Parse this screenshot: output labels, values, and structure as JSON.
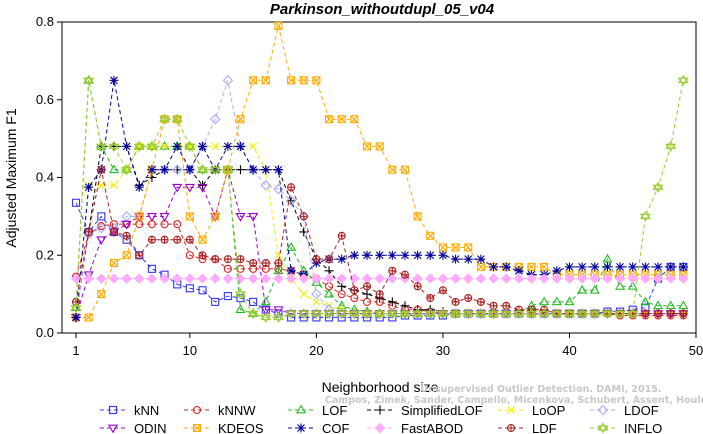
{
  "chart_data": {
    "type": "line",
    "title": "Parkinson_withoutdupl_05_v04",
    "xlabel": "Neighborhood size",
    "ylabel": "Adjusted Maximum F1",
    "xlim": [
      0,
      50
    ],
    "ylim": [
      0,
      0.8
    ],
    "xticks": [
      "1",
      "10",
      "20",
      "30",
      "40",
      "50"
    ],
    "yticks": [
      "0.0",
      "0.2",
      "0.4",
      "0.6",
      "0.8"
    ],
    "grid": false,
    "legend_position": "bottom",
    "watermark": [
      "Unsupervised Outlier Detection. DAMI, 2015.",
      "Campos, Zimek, Sander, Campello, Micenkova, Schubert, Assent, Houle"
    ],
    "series": [
      {
        "name": "kNN",
        "color": "#3333ff",
        "marker": "square",
        "x": [
          1,
          2,
          3,
          4,
          5,
          6,
          7,
          8,
          9,
          10,
          11,
          12,
          13,
          14,
          15,
          16,
          17,
          18,
          19,
          20,
          21,
          22,
          23,
          24,
          25,
          26,
          27,
          28,
          29,
          30,
          31,
          32,
          33,
          34,
          35,
          36,
          37,
          38,
          39,
          40,
          41,
          42,
          43,
          44,
          45,
          46,
          47,
          48,
          49
        ],
        "y": [
          0.335,
          0.26,
          0.3,
          0.26,
          0.24,
          0.2,
          0.165,
          0.15,
          0.125,
          0.115,
          0.11,
          0.08,
          0.095,
          0.09,
          0.08,
          0.06,
          0.05,
          0.04,
          0.04,
          0.04,
          0.04,
          0.04,
          0.04,
          0.04,
          0.04,
          0.04,
          0.045,
          0.045,
          0.045,
          0.045,
          0.05,
          0.05,
          0.05,
          0.05,
          0.05,
          0.05,
          0.05,
          0.05,
          0.05,
          0.05,
          0.05,
          0.05,
          0.055,
          0.055,
          0.06,
          0.065,
          0.14,
          0.17,
          0.17
        ]
      },
      {
        "name": "kNNW",
        "color": "#dd2222",
        "marker": "circle",
        "x": [
          1,
          2,
          3,
          4,
          5,
          6,
          7,
          8,
          9,
          10,
          11,
          12,
          13,
          14,
          15,
          16,
          17,
          18,
          19,
          20,
          21,
          22,
          23,
          24,
          25,
          26,
          27,
          28,
          29,
          30,
          31,
          32,
          33,
          34,
          35,
          36,
          37,
          38,
          39,
          40,
          41,
          42,
          43,
          44,
          45,
          46,
          47,
          48,
          49
        ],
        "y": [
          0.145,
          0.255,
          0.275,
          0.28,
          0.28,
          0.28,
          0.28,
          0.28,
          0.28,
          0.2,
          0.19,
          0.19,
          0.165,
          0.165,
          0.165,
          0.165,
          0.165,
          0.16,
          0.15,
          0.14,
          0.12,
          0.1,
          0.09,
          0.08,
          0.08,
          0.07,
          0.06,
          0.06,
          0.055,
          0.05,
          0.05,
          0.05,
          0.05,
          0.05,
          0.05,
          0.05,
          0.05,
          0.05,
          0.05,
          0.05,
          0.05,
          0.05,
          0.05,
          0.045,
          0.045,
          0.045,
          0.045,
          0.045,
          0.045
        ]
      },
      {
        "name": "LOF",
        "color": "#22bb22",
        "marker": "triangle-up",
        "x": [
          1,
          2,
          3,
          4,
          5,
          6,
          7,
          8,
          9,
          10,
          11,
          12,
          13,
          14,
          15,
          16,
          17,
          18,
          19,
          20,
          21,
          22,
          23,
          24,
          25,
          26,
          27,
          28,
          29,
          30,
          31,
          32,
          33,
          34,
          35,
          36,
          37,
          38,
          39,
          40,
          41,
          42,
          43,
          44,
          45,
          46,
          47,
          48,
          49
        ],
        "y": [
          0.065,
          0.65,
          0.48,
          0.42,
          0.42,
          0.48,
          0.48,
          0.48,
          0.48,
          0.48,
          0.42,
          0.42,
          0.42,
          0.06,
          0.05,
          0.08,
          0.16,
          0.22,
          0.16,
          0.13,
          0.1,
          0.07,
          0.06,
          0.055,
          0.05,
          0.05,
          0.05,
          0.05,
          0.05,
          0.05,
          0.05,
          0.05,
          0.05,
          0.05,
          0.05,
          0.05,
          0.07,
          0.08,
          0.08,
          0.08,
          0.11,
          0.11,
          0.19,
          0.12,
          0.12,
          0.08,
          0.07,
          0.07,
          0.07
        ]
      },
      {
        "name": "SimplifiedLOF",
        "color": "#000000",
        "marker": "plus",
        "x": [
          1,
          2,
          3,
          4,
          5,
          6,
          7,
          8,
          9,
          10,
          11,
          12,
          13,
          14,
          15,
          16,
          17,
          18,
          19,
          20,
          21,
          22,
          23,
          24,
          25,
          26,
          27,
          28,
          29,
          30,
          31,
          32,
          33,
          34,
          35,
          36,
          37,
          38,
          39,
          40,
          41,
          42,
          43,
          44,
          45,
          46,
          47,
          48,
          49
        ],
        "y": [
          0.04,
          0.26,
          0.48,
          0.48,
          0.48,
          0.38,
          0.4,
          0.42,
          0.42,
          0.42,
          0.38,
          0.42,
          0.42,
          0.42,
          0.42,
          0.42,
          0.42,
          0.34,
          0.26,
          0.19,
          0.16,
          0.12,
          0.11,
          0.1,
          0.09,
          0.08,
          0.07,
          0.06,
          0.06,
          0.055,
          0.05,
          0.05,
          0.05,
          0.05,
          0.05,
          0.05,
          0.05,
          0.05,
          0.05,
          0.05,
          0.05,
          0.05,
          0.05,
          0.05,
          0.05,
          0.05,
          0.05,
          0.05,
          0.05
        ]
      },
      {
        "name": "LoOP",
        "color": "#eeee00",
        "marker": "x",
        "x": [
          1,
          2,
          3,
          4,
          5,
          6,
          7,
          8,
          9,
          10,
          11,
          12,
          13,
          14,
          15,
          16,
          17,
          18,
          19,
          20,
          21,
          22,
          23,
          24,
          25,
          26,
          27,
          28,
          29,
          30,
          31,
          32,
          33,
          34,
          35,
          36,
          37,
          38,
          39,
          40,
          41,
          42,
          43,
          44,
          45,
          46,
          47,
          48,
          49
        ],
        "y": [
          0.04,
          0.38,
          0.38,
          0.38,
          0.42,
          0.48,
          0.48,
          0.48,
          0.48,
          0.48,
          0.48,
          0.48,
          0.48,
          0.48,
          0.48,
          0.42,
          0.2,
          0.14,
          0.1,
          0.08,
          0.07,
          0.06,
          0.05,
          0.05,
          0.05,
          0.05,
          0.05,
          0.05,
          0.05,
          0.05,
          0.05,
          0.05,
          0.05,
          0.05,
          0.05,
          0.05,
          0.05,
          0.05,
          0.05,
          0.05,
          0.05,
          0.05,
          0.05,
          0.05,
          0.05,
          0.05,
          0.05,
          0.05,
          0.05
        ]
      },
      {
        "name": "LDOF",
        "color": "#aaaaff",
        "marker": "diamond",
        "x": [
          1,
          2,
          3,
          4,
          5,
          6,
          7,
          8,
          9,
          10,
          11,
          12,
          13,
          14,
          15,
          16,
          17,
          18,
          19,
          20,
          21,
          22,
          23,
          24,
          25,
          26,
          27,
          28,
          29,
          30,
          31,
          32,
          33,
          34,
          35,
          36,
          37,
          38,
          39,
          40,
          41,
          42,
          43,
          44,
          45,
          46,
          47,
          48,
          49
        ],
        "y": [
          0.04,
          0.255,
          0.27,
          0.27,
          0.3,
          0.3,
          0.42,
          0.42,
          0.42,
          0.42,
          0.48,
          0.55,
          0.65,
          0.48,
          0.42,
          0.38,
          0.37,
          0.34,
          0.3,
          0.1,
          0.06,
          0.05,
          0.05,
          0.05,
          0.05,
          0.05,
          0.05,
          0.05,
          0.05,
          0.05,
          0.05,
          0.05,
          0.05,
          0.05,
          0.05,
          0.05,
          0.05,
          0.05,
          0.05,
          0.05,
          0.05,
          0.05,
          0.05,
          0.05,
          0.05,
          0.05,
          0.05,
          0.05,
          0.05
        ]
      },
      {
        "name": "ODIN",
        "color": "#9900cc",
        "marker": "triangle-down",
        "x": [
          1,
          2,
          3,
          4,
          5,
          6,
          7,
          8,
          9,
          10,
          11,
          12,
          13,
          14,
          15,
          16,
          17,
          18,
          19,
          20,
          21,
          22,
          23,
          24,
          25,
          26,
          27,
          28,
          29,
          30,
          31,
          32,
          33,
          34,
          35,
          36,
          37,
          38,
          39,
          40,
          41,
          42,
          43,
          44,
          45,
          46,
          47,
          48,
          49
        ],
        "y": [
          0.04,
          0.15,
          0.24,
          0.26,
          0.28,
          0.3,
          0.3,
          0.3,
          0.375,
          0.375,
          0.375,
          0.3,
          0.42,
          0.3,
          0.3,
          0.06,
          0.06,
          0.05,
          0.05,
          0.05,
          0.05,
          0.05,
          0.05,
          0.05,
          0.05,
          0.05,
          0.05,
          0.05,
          0.05,
          0.05,
          0.05,
          0.05,
          0.05,
          0.05,
          0.05,
          0.05,
          0.05,
          0.05,
          0.05,
          0.05,
          0.05,
          0.05,
          0.05,
          0.05,
          0.05,
          0.05,
          0.05,
          0.05,
          0.05
        ]
      },
      {
        "name": "KDEOS",
        "color": "#ffaa00",
        "marker": "square-x",
        "x": [
          1,
          2,
          3,
          4,
          5,
          6,
          7,
          8,
          9,
          10,
          11,
          12,
          13,
          14,
          15,
          16,
          17,
          18,
          19,
          20,
          21,
          22,
          23,
          24,
          25,
          26,
          27,
          28,
          29,
          30,
          31,
          32,
          33,
          34,
          35,
          36,
          37,
          38,
          39,
          40,
          41,
          42,
          43,
          44,
          45,
          46,
          47,
          48,
          49
        ],
        "y": [
          0.04,
          0.04,
          0.1,
          0.18,
          0.2,
          0.3,
          0.42,
          0.55,
          0.55,
          0.3,
          0.24,
          0.3,
          0.42,
          0.55,
          0.65,
          0.65,
          0.79,
          0.65,
          0.65,
          0.65,
          0.55,
          0.55,
          0.55,
          0.48,
          0.48,
          0.42,
          0.42,
          0.3,
          0.25,
          0.22,
          0.22,
          0.22,
          0.17,
          0.17,
          0.17,
          0.17,
          0.17,
          0.17,
          0.15,
          0.15,
          0.15,
          0.15,
          0.15,
          0.15,
          0.15,
          0.15,
          0.15,
          0.15,
          0.15
        ]
      },
      {
        "name": "COF",
        "color": "#000099",
        "marker": "star",
        "x": [
          1,
          2,
          3,
          4,
          5,
          6,
          7,
          8,
          9,
          10,
          11,
          12,
          13,
          14,
          15,
          16,
          17,
          18,
          19,
          20,
          21,
          22,
          23,
          24,
          25,
          26,
          27,
          28,
          29,
          30,
          31,
          32,
          33,
          34,
          35,
          36,
          37,
          38,
          39,
          40,
          41,
          42,
          43,
          44,
          45,
          46,
          47,
          48,
          49
        ],
        "y": [
          0.04,
          0.375,
          0.42,
          0.65,
          0.48,
          0.375,
          0.42,
          0.42,
          0.48,
          0.42,
          0.48,
          0.42,
          0.48,
          0.48,
          0.42,
          0.42,
          0.42,
          0.16,
          0.15,
          0.18,
          0.19,
          0.19,
          0.2,
          0.2,
          0.2,
          0.2,
          0.2,
          0.2,
          0.2,
          0.2,
          0.19,
          0.19,
          0.19,
          0.17,
          0.17,
          0.16,
          0.15,
          0.15,
          0.16,
          0.17,
          0.17,
          0.17,
          0.17,
          0.17,
          0.17,
          0.17,
          0.17,
          0.17,
          0.17
        ]
      },
      {
        "name": "FastABOD",
        "color": "#ffaaff",
        "marker": "diamond-filled",
        "x": [
          1,
          2,
          3,
          4,
          5,
          6,
          7,
          8,
          9,
          10,
          11,
          12,
          13,
          14,
          15,
          16,
          17,
          18,
          19,
          20,
          21,
          22,
          23,
          24,
          25,
          26,
          27,
          28,
          29,
          30,
          31,
          32,
          33,
          34,
          35,
          36,
          37,
          38,
          39,
          40,
          41,
          42,
          43,
          44,
          45,
          46,
          47,
          48,
          49
        ],
        "y": [
          0.14,
          0.14,
          0.14,
          0.14,
          0.14,
          0.14,
          0.14,
          0.14,
          0.14,
          0.14,
          0.14,
          0.14,
          0.14,
          0.14,
          0.14,
          0.14,
          0.14,
          0.14,
          0.14,
          0.14,
          0.14,
          0.14,
          0.14,
          0.14,
          0.14,
          0.14,
          0.14,
          0.14,
          0.14,
          0.14,
          0.14,
          0.14,
          0.14,
          0.14,
          0.14,
          0.14,
          0.14,
          0.14,
          0.14,
          0.14,
          0.14,
          0.14,
          0.14,
          0.14,
          0.14,
          0.14,
          0.14,
          0.14,
          0.14
        ]
      },
      {
        "name": "LDF",
        "color": "#aa2222",
        "marker": "circle-plus",
        "x": [
          1,
          2,
          3,
          4,
          5,
          6,
          7,
          8,
          9,
          10,
          11,
          12,
          13,
          14,
          15,
          16,
          17,
          18,
          19,
          20,
          21,
          22,
          23,
          24,
          25,
          26,
          27,
          28,
          29,
          30,
          31,
          32,
          33,
          34,
          35,
          36,
          37,
          38,
          39,
          40,
          41,
          42,
          43,
          44,
          45,
          46,
          47,
          48,
          49
        ],
        "y": [
          0.08,
          0.26,
          0.42,
          0.26,
          0.25,
          0.2,
          0.24,
          0.24,
          0.24,
          0.24,
          0.2,
          0.19,
          0.19,
          0.19,
          0.18,
          0.18,
          0.18,
          0.375,
          0.3,
          0.19,
          0.19,
          0.25,
          0.11,
          0.12,
          0.1,
          0.16,
          0.15,
          0.12,
          0.09,
          0.11,
          0.08,
          0.09,
          0.08,
          0.07,
          0.07,
          0.06,
          0.06,
          0.06,
          0.05,
          0.05,
          0.05,
          0.05,
          0.05,
          0.05,
          0.05,
          0.05,
          0.05,
          0.05,
          0.05
        ]
      },
      {
        "name": "INFLO",
        "color": "#99cc33",
        "marker": "star-of-david",
        "x": [
          1,
          2,
          3,
          4,
          5,
          6,
          7,
          8,
          9,
          10,
          11,
          12,
          13,
          14,
          15,
          16,
          17,
          18,
          19,
          20,
          21,
          22,
          23,
          24,
          25,
          26,
          27,
          28,
          29,
          30,
          31,
          32,
          33,
          34,
          35,
          36,
          37,
          38,
          39,
          40,
          41,
          42,
          43,
          44,
          45,
          46,
          47,
          48,
          49
        ],
        "y": [
          0.065,
          0.65,
          0.48,
          0.48,
          0.42,
          0.48,
          0.48,
          0.55,
          0.55,
          0.48,
          0.42,
          0.42,
          0.42,
          0.1,
          0.05,
          0.04,
          0.04,
          0.05,
          0.05,
          0.05,
          0.05,
          0.05,
          0.05,
          0.05,
          0.05,
          0.05,
          0.05,
          0.05,
          0.05,
          0.05,
          0.05,
          0.05,
          0.05,
          0.05,
          0.05,
          0.05,
          0.05,
          0.05,
          0.05,
          0.05,
          0.05,
          0.05,
          0.05,
          0.05,
          0.05,
          0.3,
          0.375,
          0.48,
          0.65
        ]
      }
    ]
  }
}
